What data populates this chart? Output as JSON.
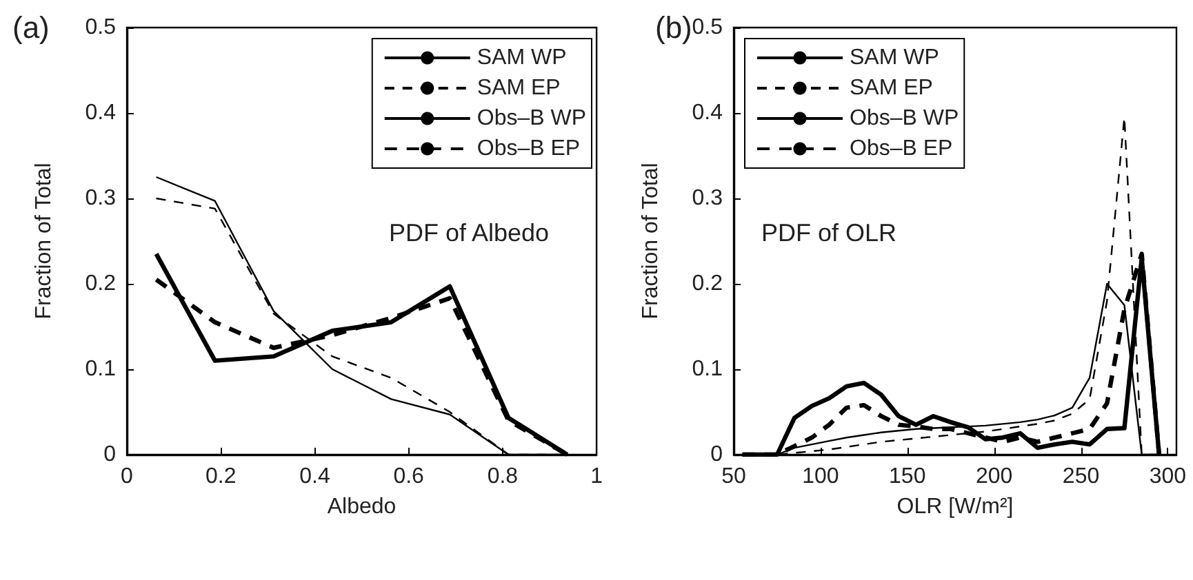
{
  "chart_data": [
    {
      "type": "line",
      "title": "(a)",
      "xlabel": "Albedo",
      "ylabel": "Fraction of Total",
      "annotations": [
        "PDF of Albedo"
      ],
      "x": [
        0.0625,
        0.1875,
        0.3125,
        0.4375,
        0.5625,
        0.6875,
        0.8125,
        0.9375
      ],
      "xlim": [
        0,
        1
      ],
      "xticks": [
        0,
        0.2,
        0.4,
        0.6,
        0.8,
        1
      ],
      "ylim": [
        0,
        0.5
      ],
      "yticks": [
        0,
        0.1,
        0.2,
        0.3,
        0.4,
        0.5
      ],
      "grid": false,
      "legend": "top right",
      "marker": "none",
      "series": [
        {
          "name": "SAM WP",
          "color": "#000000",
          "line_style": "solid",
          "values": [
            0.325,
            0.297,
            0.168,
            0.1,
            0.065,
            0.047,
            0,
            0
          ]
        },
        {
          "name": "SAM EP",
          "color": "#000000",
          "line_style": "dashed",
          "values": [
            0.3,
            0.288,
            0.165,
            0.115,
            0.09,
            0.05,
            0,
            0
          ]
        },
        {
          "name": "Obs–B WP",
          "color": "#000000",
          "line_style": "solid",
          "values": [
            0.235,
            0.11,
            0.115,
            0.145,
            0.155,
            0.197,
            0.043,
            0
          ]
        },
        {
          "name": "Obs–B EP",
          "color": "#000000",
          "line_style": "dashed",
          "values": [
            0.205,
            0.155,
            0.125,
            0.14,
            0.16,
            0.183,
            0.04,
            0
          ]
        }
      ]
    },
    {
      "type": "line",
      "title": "(b)",
      "xlabel": "OLR [W/m²]",
      "ylabel": "Fraction of Total",
      "annotations": [
        "PDF of OLR"
      ],
      "x": [
        55,
        65,
        75,
        85,
        95,
        105,
        115,
        125,
        135,
        145,
        155,
        165,
        175,
        185,
        195,
        205,
        215,
        225,
        235,
        245,
        255,
        265,
        275,
        285,
        295
      ],
      "xlim": [
        50,
        305
      ],
      "xticks": [
        50,
        100,
        150,
        200,
        250,
        300
      ],
      "ylim": [
        0,
        0.5
      ],
      "yticks": [
        0,
        0.1,
        0.2,
        0.3,
        0.4,
        0.5
      ],
      "grid": false,
      "legend": "top left",
      "marker": "none",
      "series": [
        {
          "name": "SAM WP",
          "color": "#000000",
          "line_style": "solid",
          "values": [
            0,
            0,
            0,
            0.008,
            0.012,
            0.016,
            0.02,
            0.023,
            0.026,
            0.028,
            0.03,
            0.031,
            0.032,
            0.033,
            0.034,
            0.036,
            0.038,
            0.041,
            0.046,
            0.055,
            0.09,
            0.2,
            0.175,
            0,
            0
          ]
        },
        {
          "name": "SAM EP",
          "color": "#000000",
          "line_style": "dashed",
          "values": [
            0,
            0,
            0,
            0.002,
            0.004,
            0.006,
            0.009,
            0.012,
            0.015,
            0.017,
            0.019,
            0.021,
            0.023,
            0.025,
            0.027,
            0.03,
            0.033,
            0.036,
            0.04,
            0.048,
            0.065,
            0.18,
            0.395,
            0,
            0
          ]
        },
        {
          "name": "Obs–B WP",
          "color": "#000000",
          "line_style": "solid",
          "values": [
            0,
            0,
            0,
            0.043,
            0.057,
            0.066,
            0.08,
            0.084,
            0.07,
            0.045,
            0.035,
            0.045,
            0.038,
            0.032,
            0.018,
            0.02,
            0.025,
            0.008,
            0.012,
            0.015,
            0.012,
            0.03,
            0.031,
            0.23,
            0
          ]
        },
        {
          "name": "Obs–B EP",
          "color": "#000000",
          "line_style": "dashed",
          "values": [
            0,
            0,
            0,
            0.01,
            0.02,
            0.035,
            0.055,
            0.058,
            0.045,
            0.035,
            0.033,
            0.03,
            0.03,
            0.025,
            0.02,
            0.015,
            0.02,
            0.015,
            0.02,
            0.025,
            0.03,
            0.06,
            0.17,
            0.235,
            0
          ]
        }
      ]
    }
  ]
}
